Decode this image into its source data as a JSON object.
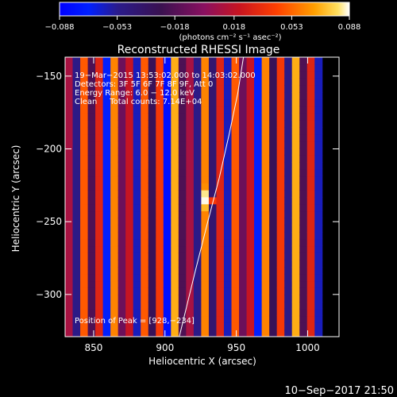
{
  "chart_data": {
    "type": "heatmap",
    "title": "Reconstructed RHESSI Image",
    "xlabel": "Heliocentric X (arcsec)",
    "ylabel": "Heliocentric Y (arcsec)",
    "xlim": [
      830,
      1022
    ],
    "ylim": [
      -329,
      -137
    ],
    "x_ticks": [
      850,
      900,
      950,
      1000
    ],
    "x_tick_labels": [
      "850",
      "900",
      "950",
      "1000"
    ],
    "y_ticks": [
      -150,
      -200,
      -250,
      -300
    ],
    "y_tick_labels": [
      "−150",
      "−200",
      "−250",
      "−300"
    ],
    "colorbar": {
      "min": -0.088,
      "max": 0.088,
      "tick_values": [
        -0.088,
        -0.053,
        -0.018,
        0.018,
        0.053,
        0.088
      ],
      "tick_labels": [
        "−0.088",
        "−0.053",
        "−0.018",
        "0.018",
        "0.053",
        "0.088"
      ],
      "units_text": "(photons cm⁻² s⁻¹ asec⁻²)"
    },
    "annotations": [
      "19−Mar−2015 13:53:02.000 to 14:03:02.000",
      "Detectors: 3F 5F 6F 7F 8F 9F, Att 0",
      "Energy Range: 6.0 − 12.0 keV",
      "Clean     Total counts: 7.14E+04"
    ],
    "peak_label": "Position of Peak = [928,−234]",
    "peak": {
      "x": 928,
      "y": -234,
      "value": 0.088
    },
    "limb_curve": [
      [
        910,
        -329
      ],
      [
        921,
        -285
      ],
      [
        930,
        -250
      ],
      [
        938,
        -220
      ],
      [
        945,
        -190
      ],
      [
        951,
        -162
      ],
      [
        955,
        -137
      ]
    ],
    "stripe_period_arcsec": 5.3,
    "stripe_values": [
      0.01,
      -0.05,
      0.05,
      -0.02,
      0.03,
      -0.07,
      0.06,
      -0.01,
      0.02,
      -0.06,
      0.05,
      -0.03,
      0.04,
      -0.08,
      0.07,
      -0.02,
      0.01,
      -0.05,
      0.06,
      -0.04,
      0.03,
      -0.06,
      0.05,
      -0.01,
      0.02,
      -0.07,
      0.06,
      -0.03,
      0.04,
      -0.05,
      0.07,
      -0.02,
      0.03,
      -0.06
    ]
  },
  "footer": {
    "timestamp": "10−Sep−2017 21:50"
  }
}
